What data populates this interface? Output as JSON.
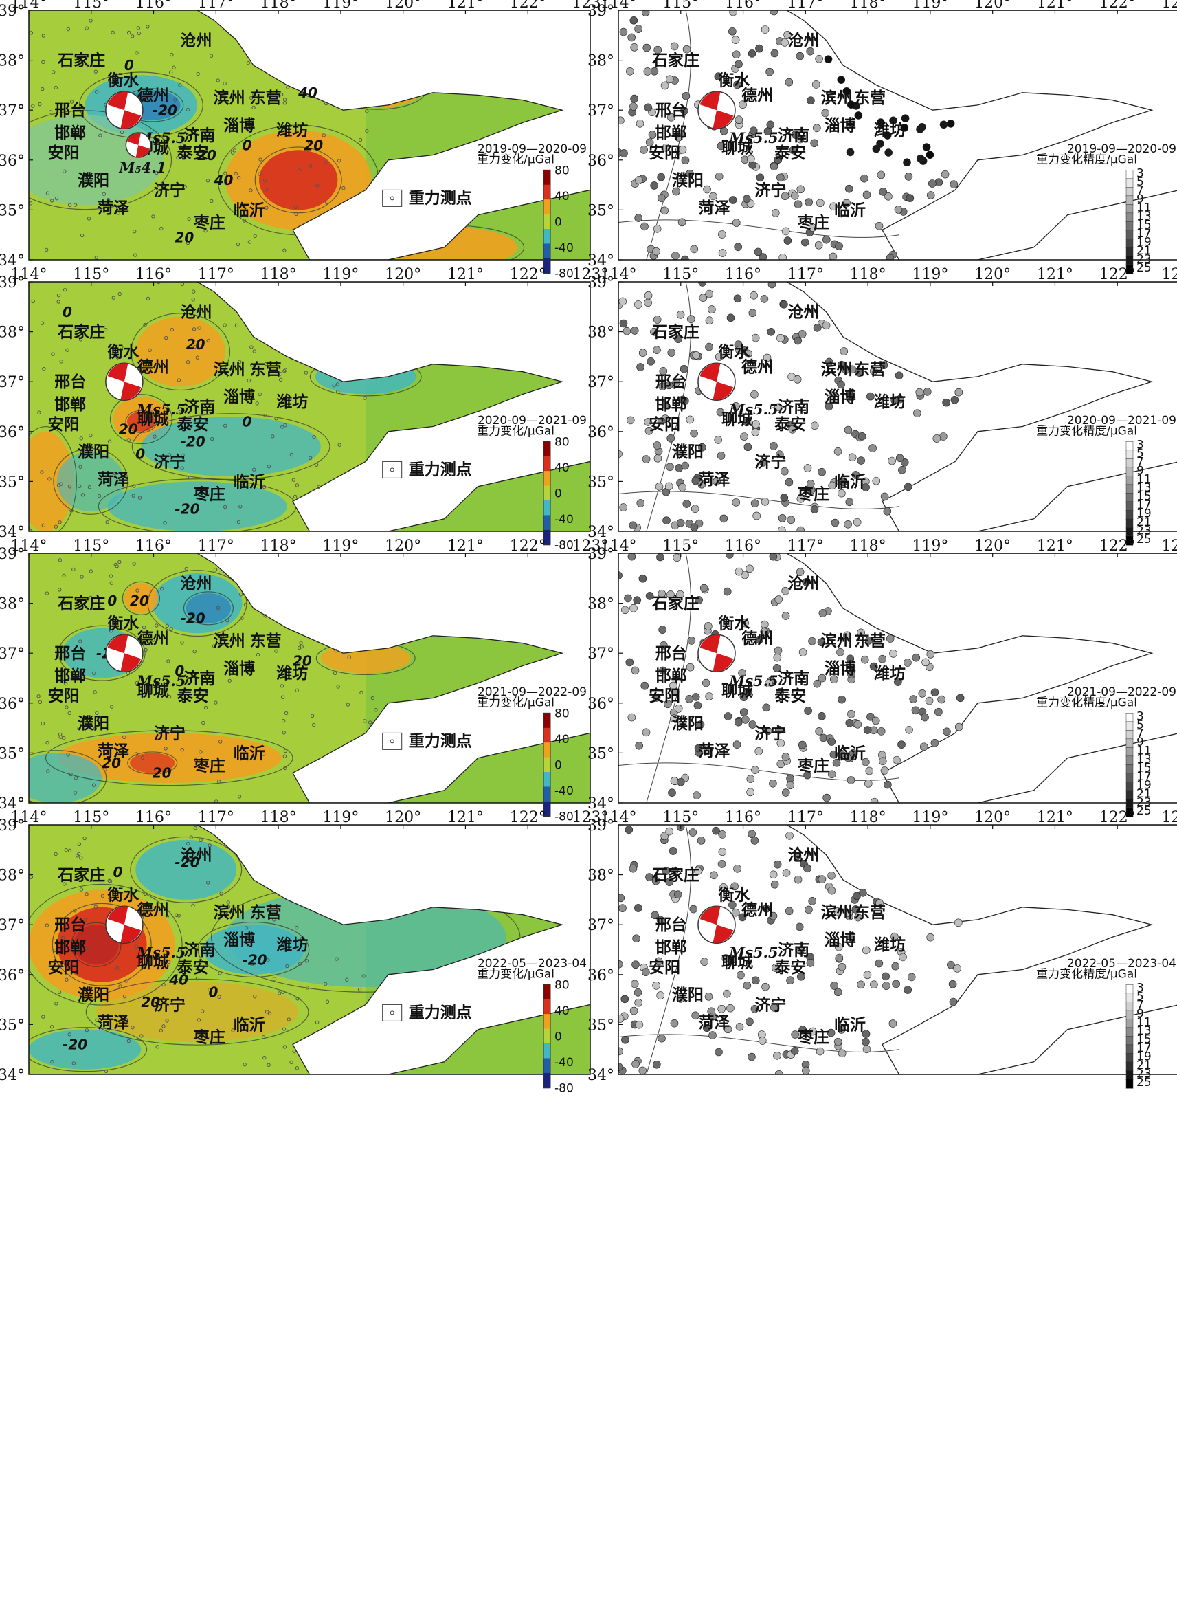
{
  "axes": {
    "lon_ticks": [
      "114°",
      "115°",
      "116°",
      "117°",
      "118°",
      "119°",
      "120°",
      "121°",
      "122°",
      "123°"
    ],
    "lat_ticks": [
      "39°",
      "38°",
      "37°",
      "36°",
      "35°",
      "34°"
    ]
  },
  "cities": [
    "石家庄",
    "衡水",
    "沧州",
    "德州",
    "滨州",
    "东营",
    "邢台",
    "邯郸",
    "聊城",
    "济南",
    "淄博",
    "潍坊",
    "安阳",
    "泰安",
    "濮阳",
    "济宁",
    "菏泽",
    "枣庄",
    "临沂"
  ],
  "left_colorbar": {
    "title": "重力变化/μGal",
    "labels": [
      "80",
      "40",
      "0",
      "-40",
      "-80"
    ]
  },
  "right_colorbar": {
    "title": "重力变化精度/μGal",
    "labels": [
      "3",
      "5",
      "7",
      "9",
      "11",
      "13",
      "15",
      "17",
      "19",
      "21",
      "23",
      "25"
    ]
  },
  "legend_station": "重力测点",
  "epicenters": {
    "main": "Ms5.5",
    "minor": "M₅4.1"
  },
  "panels": [
    {
      "period": "2019-09—2020-09",
      "contour_labels": [
        "0",
        "-20",
        "40",
        "20",
        "40",
        "20",
        "0",
        "20"
      ],
      "has_minor_event": true
    },
    {
      "period": "2020-09—2021-09",
      "contour_labels": [
        "0",
        "20",
        "20",
        "0",
        "-20",
        "-20",
        "0"
      ],
      "has_minor_event": false
    },
    {
      "period": "2021-09—2022-09",
      "contour_labels": [
        "0",
        "20",
        "-20",
        "-20",
        "20",
        "20",
        "20",
        "0"
      ],
      "has_minor_event": false
    },
    {
      "period": "2022-05—2023-04",
      "contour_labels": [
        "0",
        "-20",
        "40",
        "20",
        "0",
        "-20",
        "-20"
      ],
      "has_minor_event": false
    }
  ],
  "colors": {
    "pos_high": "#d7301f",
    "pos_mid": "#f0a020",
    "neutral": "#b7d33a",
    "low": "#8cc63f",
    "neg_mid": "#41b6c4",
    "neg_high": "#225ea8",
    "sea": "#ffffff",
    "beach_red": "#d7191c",
    "station_dot": "#555555"
  }
}
